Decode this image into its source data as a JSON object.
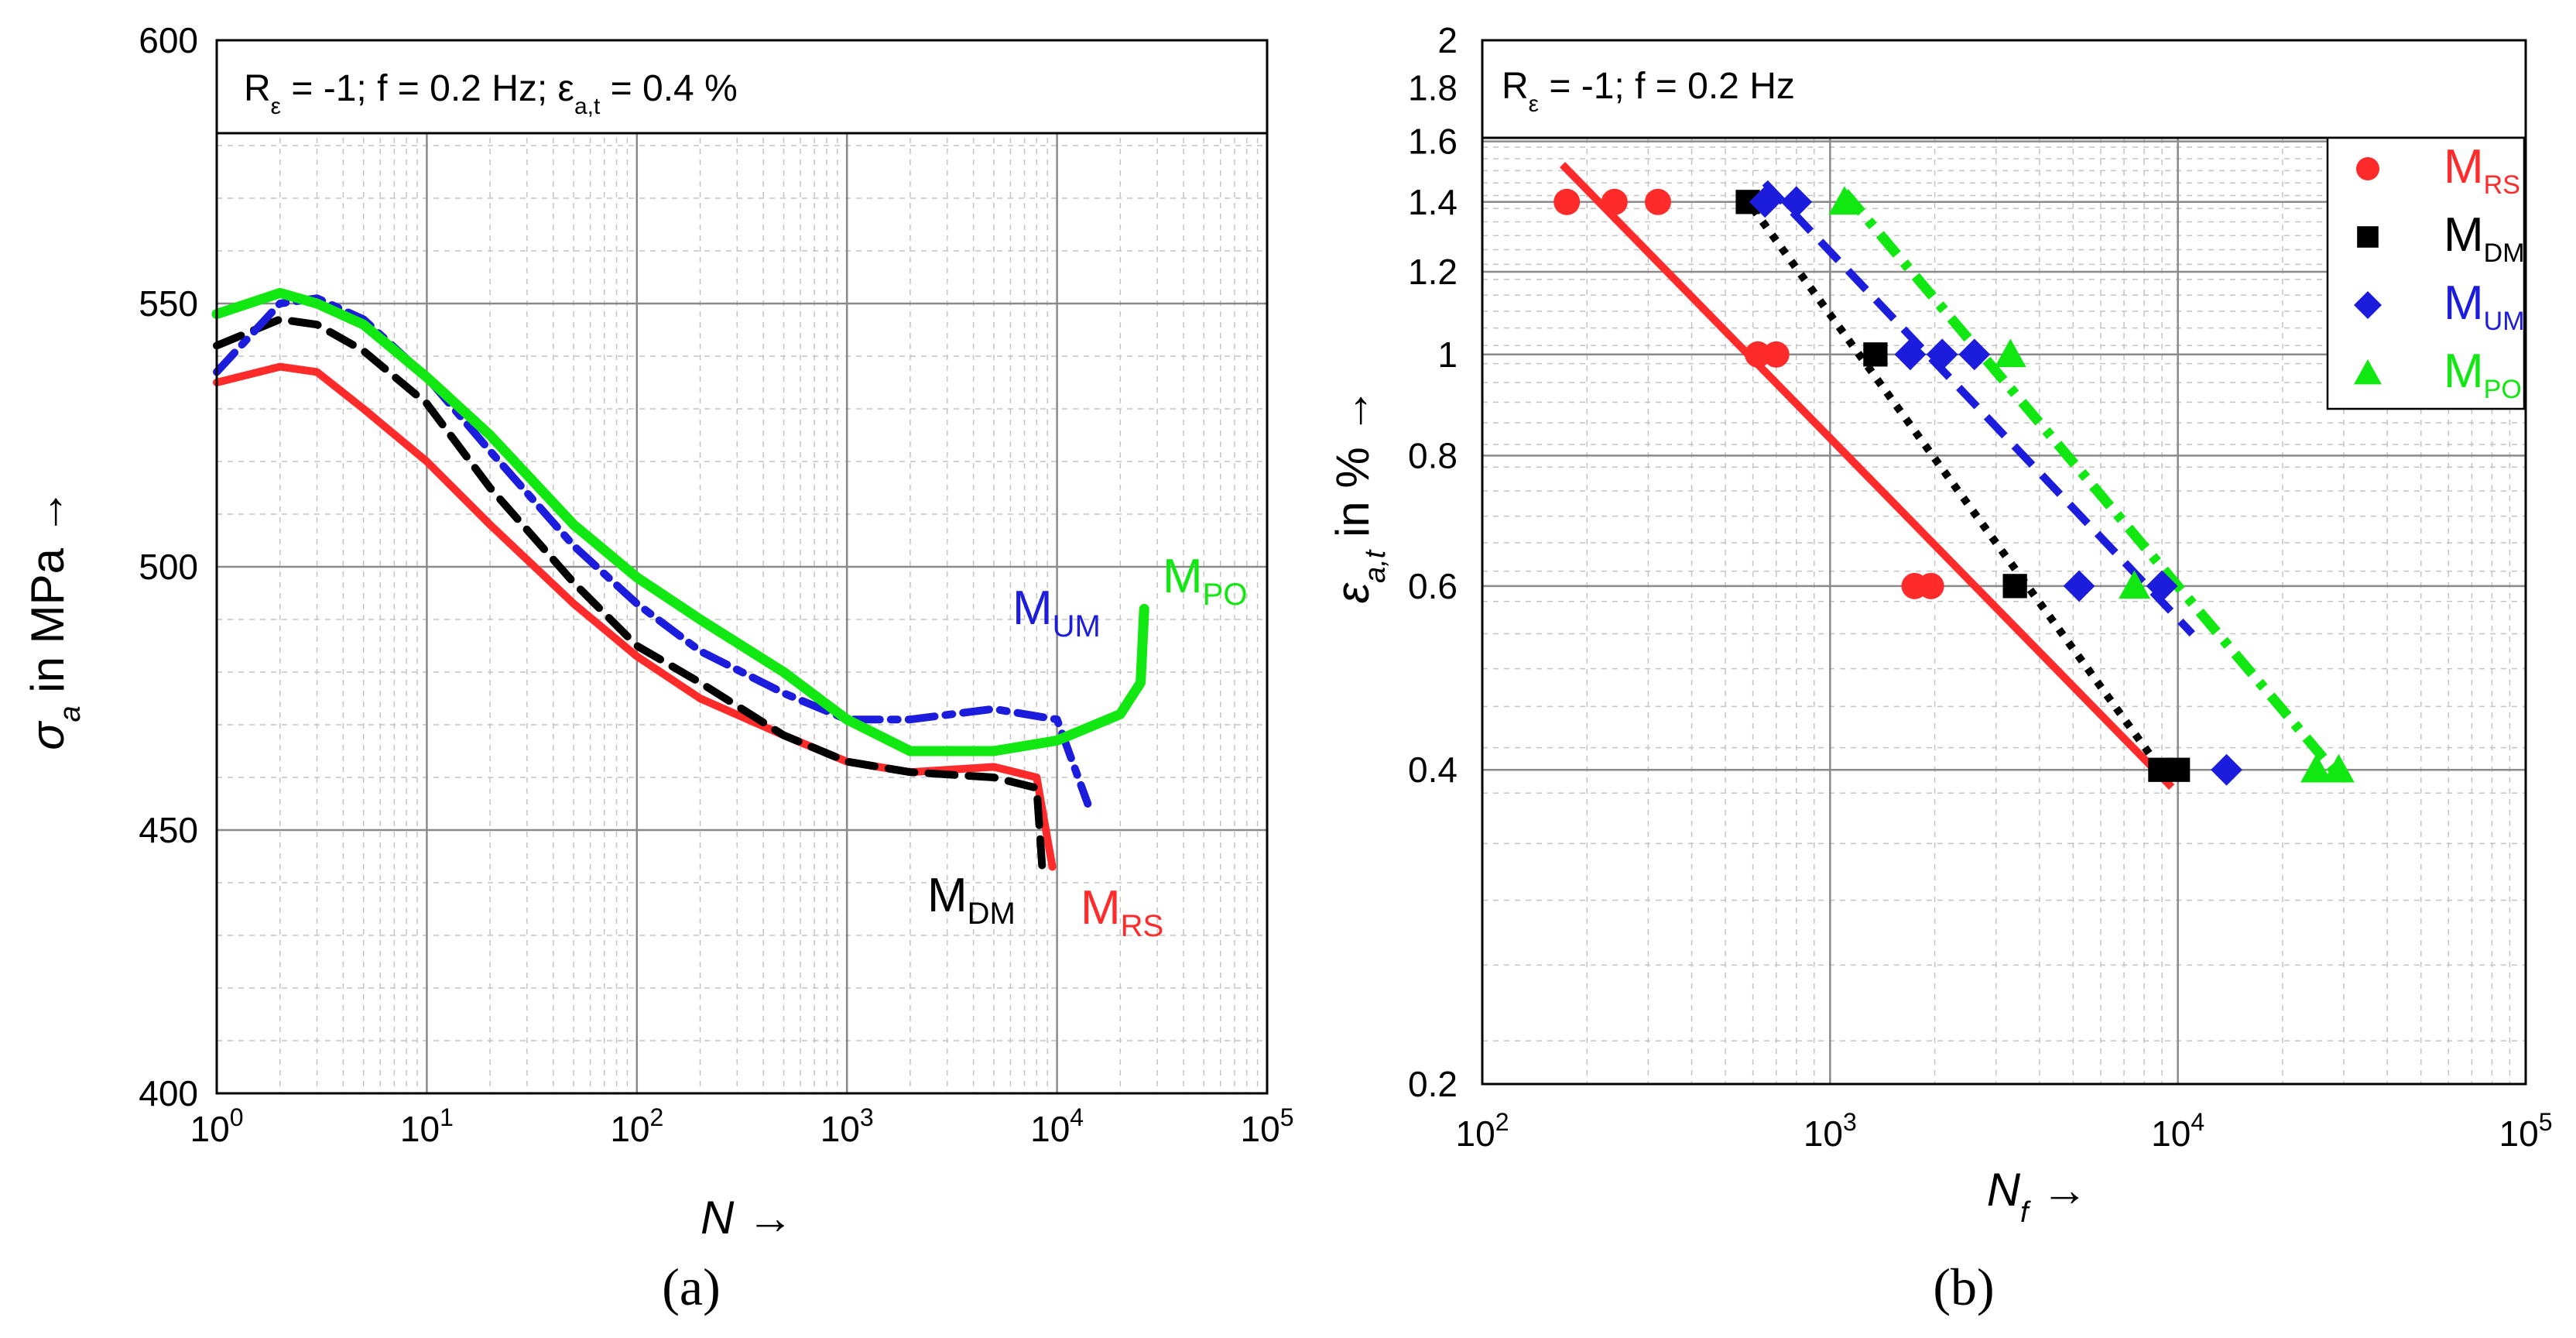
{
  "colors": {
    "RS": "#ff2a2a",
    "DM": "#000000",
    "UM": "#1c1cdc",
    "PO": "#11e711"
  },
  "chart_data": [
    {
      "type": "line",
      "panel_label": "(a)",
      "annotation": {
        "prefix": "R",
        "prefix_sub": "ε",
        "middle": " = -1; f = 0.2 Hz; ε",
        "middle_sub": "a,t",
        "suffix": " = 0.4 %"
      },
      "ylabel": {
        "sym": "σ",
        "sub": "a",
        "rest": " in MPa →"
      },
      "xlabel": {
        "sym": "N",
        "rest": " →"
      },
      "xscale": "log",
      "xlim": [
        1,
        100000
      ],
      "ylim": [
        400,
        600
      ],
      "xticks": [
        {
          "v": 1,
          "base": "10",
          "exp": "0"
        },
        {
          "v": 10,
          "base": "10",
          "exp": "1"
        },
        {
          "v": 100,
          "base": "10",
          "exp": "2"
        },
        {
          "v": 1000,
          "base": "10",
          "exp": "3"
        },
        {
          "v": 10000,
          "base": "10",
          "exp": "4"
        },
        {
          "v": 100000,
          "base": "10",
          "exp": "5"
        }
      ],
      "yticks": [
        {
          "v": 400,
          "label": "400"
        },
        {
          "v": 450,
          "label": "450"
        },
        {
          "v": 500,
          "label": "500"
        },
        {
          "v": 550,
          "label": "550"
        },
        {
          "v": 600,
          "label": "600"
        }
      ],
      "series": [
        {
          "key": "RS",
          "name": "M",
          "sub": "RS",
          "style": "solid",
          "x": [
            1,
            2,
            3,
            5,
            10,
            20,
            50,
            100,
            200,
            500,
            1000,
            2000,
            5000,
            8000,
            9500
          ],
          "y": [
            535,
            538,
            537,
            530,
            520,
            508,
            493,
            483,
            475,
            468,
            463,
            461,
            462,
            460,
            443
          ]
        },
        {
          "key": "DM",
          "name": "M",
          "sub": "DM",
          "style": "dashed",
          "x": [
            1,
            2,
            3,
            5,
            10,
            20,
            50,
            100,
            200,
            500,
            1000,
            2000,
            5000,
            8000,
            8500
          ],
          "y": [
            542,
            547,
            546,
            541,
            531,
            515,
            497,
            485,
            478,
            468,
            463,
            461,
            460,
            458,
            443
          ]
        },
        {
          "key": "UM",
          "name": "M",
          "sub": "UM",
          "style": "dashdot",
          "x": [
            1,
            2,
            3,
            5,
            10,
            20,
            50,
            100,
            200,
            500,
            1000,
            2000,
            5000,
            10000,
            14000
          ],
          "y": [
            537,
            550,
            551,
            547,
            536,
            522,
            504,
            493,
            484,
            476,
            471,
            471,
            473,
            471,
            455
          ]
        },
        {
          "key": "PO",
          "name": "M",
          "sub": "PO",
          "style": "solid",
          "x": [
            1,
            2,
            3,
            5,
            10,
            20,
            50,
            100,
            200,
            500,
            1000,
            2000,
            5000,
            10000,
            20000,
            25000,
            26000
          ],
          "y": [
            548,
            552,
            550,
            546,
            536,
            525,
            508,
            498,
            490,
            480,
            471,
            465,
            465,
            467,
            472,
            478,
            492
          ]
        }
      ],
      "labels": [
        {
          "key": "UM",
          "name": "M",
          "sub": "UM"
        },
        {
          "key": "PO",
          "name": "M",
          "sub": "PO"
        },
        {
          "key": "DM",
          "name": "M",
          "sub": "DM"
        },
        {
          "key": "RS",
          "name": "M",
          "sub": "RS"
        }
      ]
    },
    {
      "type": "scatter",
      "panel_label": "(b)",
      "annotation": {
        "prefix": "R",
        "prefix_sub": "ε",
        "middle": " = -1; f = 0.2 Hz",
        "middle_sub": "",
        "suffix": ""
      },
      "ylabel": {
        "sym": "ε",
        "sub": "a,t",
        "rest": " in % →"
      },
      "xlabel": {
        "sym": "N",
        "sub": "f",
        "rest": " →"
      },
      "xscale": "log",
      "yscale": "log",
      "xlim": [
        100,
        100000
      ],
      "ylim": [
        0.2,
        2
      ],
      "xticks": [
        {
          "v": 100,
          "base": "10",
          "exp": "2"
        },
        {
          "v": 1000,
          "base": "10",
          "exp": "3"
        },
        {
          "v": 10000,
          "base": "10",
          "exp": "4"
        },
        {
          "v": 100000,
          "base": "10",
          "exp": "5"
        }
      ],
      "yticks": [
        {
          "v": 0.2,
          "label": "0.2"
        },
        {
          "v": 0.4,
          "label": "0.4"
        },
        {
          "v": 0.6,
          "label": "0.6"
        },
        {
          "v": 0.8,
          "label": "0.8"
        },
        {
          "v": 1,
          "label": "1"
        },
        {
          "v": 1.2,
          "label": "1.2"
        },
        {
          "v": 1.4,
          "label": "1.4"
        },
        {
          "v": 1.6,
          "label": "1.6"
        },
        {
          "v": 1.8,
          "label": "1.8"
        },
        {
          "v": 2,
          "label": "2"
        }
      ],
      "series": [
        {
          "key": "RS",
          "name": "M",
          "sub": "RS",
          "marker": "circle",
          "points": [
            [
              175,
              1.4
            ],
            [
              240,
              1.4
            ],
            [
              320,
              1.4
            ],
            [
              620,
              1.0
            ],
            [
              700,
              1.0
            ],
            [
              1750,
              0.6
            ],
            [
              1950,
              0.6
            ]
          ],
          "fit": {
            "x": [
              170,
              9600
            ],
            "y": [
              1.52,
              0.385
            ],
            "style": "solid"
          }
        },
        {
          "key": "DM",
          "name": "M",
          "sub": "DM",
          "marker": "square",
          "points": [
            [
              580,
              1.4
            ],
            [
              1350,
              1.0
            ],
            [
              3400,
              0.6
            ],
            [
              8900,
              0.4
            ],
            [
              10000,
              0.4
            ]
          ],
          "fit": {
            "x": [
              600,
              9200
            ],
            "y": [
              1.38,
              0.395
            ],
            "style": "dotted"
          }
        },
        {
          "key": "UM",
          "name": "M",
          "sub": "UM",
          "marker": "diamond",
          "points": [
            [
              650,
              1.4
            ],
            [
              800,
              1.4
            ],
            [
              1700,
              1.0
            ],
            [
              2100,
              1.0
            ],
            [
              2600,
              1.0
            ],
            [
              5200,
              0.6
            ],
            [
              9000,
              0.6
            ],
            [
              13800,
              0.4
            ]
          ],
          "fit": {
            "x": [
              650,
              11000
            ],
            "y": [
              1.46,
              0.54
            ],
            "style": "dashed"
          }
        },
        {
          "key": "PO",
          "name": "M",
          "sub": "PO",
          "marker": "triangle",
          "points": [
            [
              1100,
              1.4
            ],
            [
              3300,
              1.0
            ],
            [
              7500,
              0.6
            ],
            [
              25000,
              0.4
            ],
            [
              29000,
              0.4
            ]
          ],
          "fit": {
            "x": [
              1100,
              28000
            ],
            "y": [
              1.43,
              0.4
            ],
            "style": "dashdot"
          }
        }
      ],
      "legend": {
        "position": "top-right",
        "entries": [
          {
            "key": "RS",
            "name": "M",
            "sub": "RS",
            "marker": "circle"
          },
          {
            "key": "DM",
            "name": "M",
            "sub": "DM",
            "marker": "square"
          },
          {
            "key": "UM",
            "name": "M",
            "sub": "UM",
            "marker": "diamond"
          },
          {
            "key": "PO",
            "name": "M",
            "sub": "PO",
            "marker": "triangle"
          }
        ]
      }
    }
  ]
}
